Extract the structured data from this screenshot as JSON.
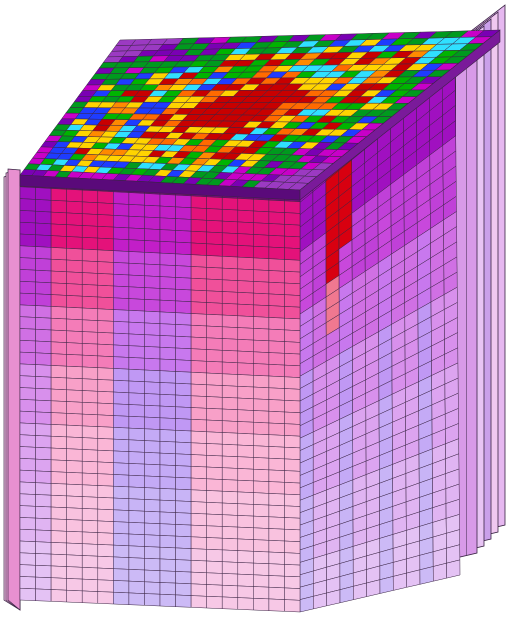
{
  "figure": {
    "subject": "3d-voxel-hexagonal-prism",
    "top_face_palette": [
      "#c80000",
      "#ff6a00",
      "#ffd400",
      "#00b400",
      "#009a1e",
      "#30e0ff",
      "#1e3cff",
      "#c800c8",
      "#ff8a00",
      "#7a00b4"
    ],
    "front_face_gradient": [
      "#e4127a",
      "#f0509a",
      "#f47cb8",
      "#f8a0c8",
      "#fab6d6",
      "#f9c2df",
      "#f7c8e6"
    ],
    "front_stripe_gradient": [
      "#c21ec8",
      "#c848dc",
      "#c878ee",
      "#c098f4",
      "#c4aaf6",
      "#c8b4f6",
      "#ccbaf6"
    ],
    "side_face_gradient": [
      "#a010c0",
      "#c040d8",
      "#d070e4",
      "#d890ec",
      "#dca4f0",
      "#e0b4f2",
      "#e4c2f4"
    ],
    "side_accent_color": "#d80010",
    "outline_color": "#3a2444",
    "rim_color": "#5a0a7a"
  }
}
